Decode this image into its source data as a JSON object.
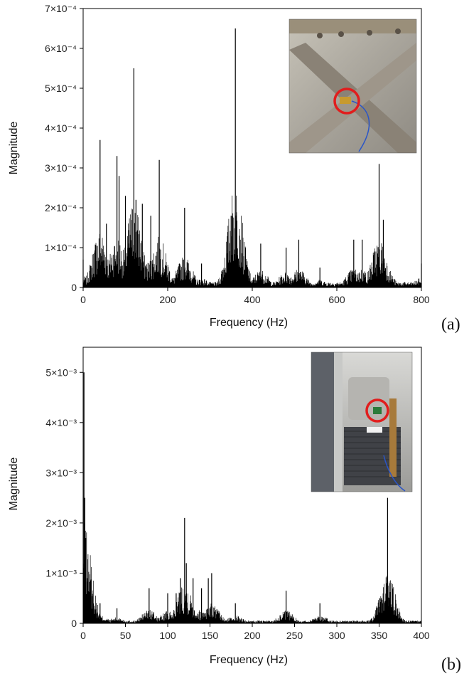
{
  "chart_data": [
    {
      "type": "line",
      "panel_label": "(a)",
      "xlabel": "Frequency (Hz)",
      "ylabel": "Magnitude",
      "xlim": [
        0,
        800
      ],
      "ylim": [
        0,
        0.0007
      ],
      "x_ticks": [
        0,
        200,
        400,
        600,
        800
      ],
      "x_tick_labels": [
        "0",
        "200",
        "400",
        "600",
        "800"
      ],
      "y_ticks": [
        0,
        0.0001,
        0.0002,
        0.0003,
        0.0004,
        0.0005,
        0.0006,
        0.0007
      ],
      "y_tick_labels": [
        "0",
        "1×10⁻⁴",
        "2×10⁻⁴",
        "3×10⁻⁴",
        "4×10⁻⁴",
        "5×10⁻⁴",
        "6×10⁻⁴",
        "7×10⁻⁴"
      ],
      "color": "#000000",
      "peaks": [
        {
          "x": 0,
          "y": 7e-05
        },
        {
          "x": 40,
          "y": 0.00037
        },
        {
          "x": 55,
          "y": 0.00016
        },
        {
          "x": 80,
          "y": 0.00033
        },
        {
          "x": 85,
          "y": 0.00028
        },
        {
          "x": 100,
          "y": 0.00023
        },
        {
          "x": 120,
          "y": 0.00055
        },
        {
          "x": 125,
          "y": 0.00022
        },
        {
          "x": 140,
          "y": 0.00021
        },
        {
          "x": 160,
          "y": 0.00018
        },
        {
          "x": 180,
          "y": 0.00032
        },
        {
          "x": 240,
          "y": 0.0002
        },
        {
          "x": 280,
          "y": 6e-05
        },
        {
          "x": 350,
          "y": 0.00018
        },
        {
          "x": 360,
          "y": 0.00065
        },
        {
          "x": 370,
          "y": 0.00013
        },
        {
          "x": 420,
          "y": 0.00011
        },
        {
          "x": 480,
          "y": 0.0001
        },
        {
          "x": 510,
          "y": 0.00012
        },
        {
          "x": 560,
          "y": 5e-05
        },
        {
          "x": 640,
          "y": 0.00012
        },
        {
          "x": 660,
          "y": 0.00012
        },
        {
          "x": 700,
          "y": 0.00031
        },
        {
          "x": 710,
          "y": 0.00017
        },
        {
          "x": 800,
          "y": 6e-05
        }
      ],
      "inset_photo": "accelerometer-on-cross-brace"
    },
    {
      "type": "line",
      "panel_label": "(b)",
      "xlabel": "Frequency (Hz)",
      "ylabel": "Magnitude",
      "xlim": [
        0,
        400
      ],
      "ylim": [
        0,
        0.0055
      ],
      "x_ticks": [
        0,
        50,
        100,
        150,
        200,
        250,
        300,
        350,
        400
      ],
      "x_tick_labels": [
        "0",
        "50",
        "100",
        "150",
        "200",
        "250",
        "300",
        "350",
        "400"
      ],
      "y_ticks": [
        0,
        0.001,
        0.002,
        0.003,
        0.004,
        0.005
      ],
      "y_tick_labels": [
        "0",
        "1×10⁻³",
        "2×10⁻³",
        "3×10⁻³",
        "4×10⁻³",
        "5×10⁻³"
      ],
      "color": "#000000",
      "peaks": [
        {
          "x": 1,
          "y": 0.005
        },
        {
          "x": 2,
          "y": 0.0025
        },
        {
          "x": 3,
          "y": 0.0017
        },
        {
          "x": 5,
          "y": 0.0009
        },
        {
          "x": 8,
          "y": 0.0006
        },
        {
          "x": 12,
          "y": 0.0004
        },
        {
          "x": 20,
          "y": 0.0004
        },
        {
          "x": 40,
          "y": 0.0003
        },
        {
          "x": 78,
          "y": 0.0007
        },
        {
          "x": 100,
          "y": 0.0006
        },
        {
          "x": 110,
          "y": 0.0006
        },
        {
          "x": 115,
          "y": 0.0009
        },
        {
          "x": 120,
          "y": 0.0021
        },
        {
          "x": 122,
          "y": 0.0012
        },
        {
          "x": 130,
          "y": 0.0009
        },
        {
          "x": 140,
          "y": 0.0007
        },
        {
          "x": 148,
          "y": 0.0009
        },
        {
          "x": 152,
          "y": 0.001
        },
        {
          "x": 180,
          "y": 0.0004
        },
        {
          "x": 240,
          "y": 0.00065
        },
        {
          "x": 280,
          "y": 0.0004
        },
        {
          "x": 360,
          "y": 0.0025
        },
        {
          "x": 362,
          "y": 0.0008
        }
      ],
      "inset_photo": "accelerometer-on-vacuum-chamber"
    }
  ]
}
